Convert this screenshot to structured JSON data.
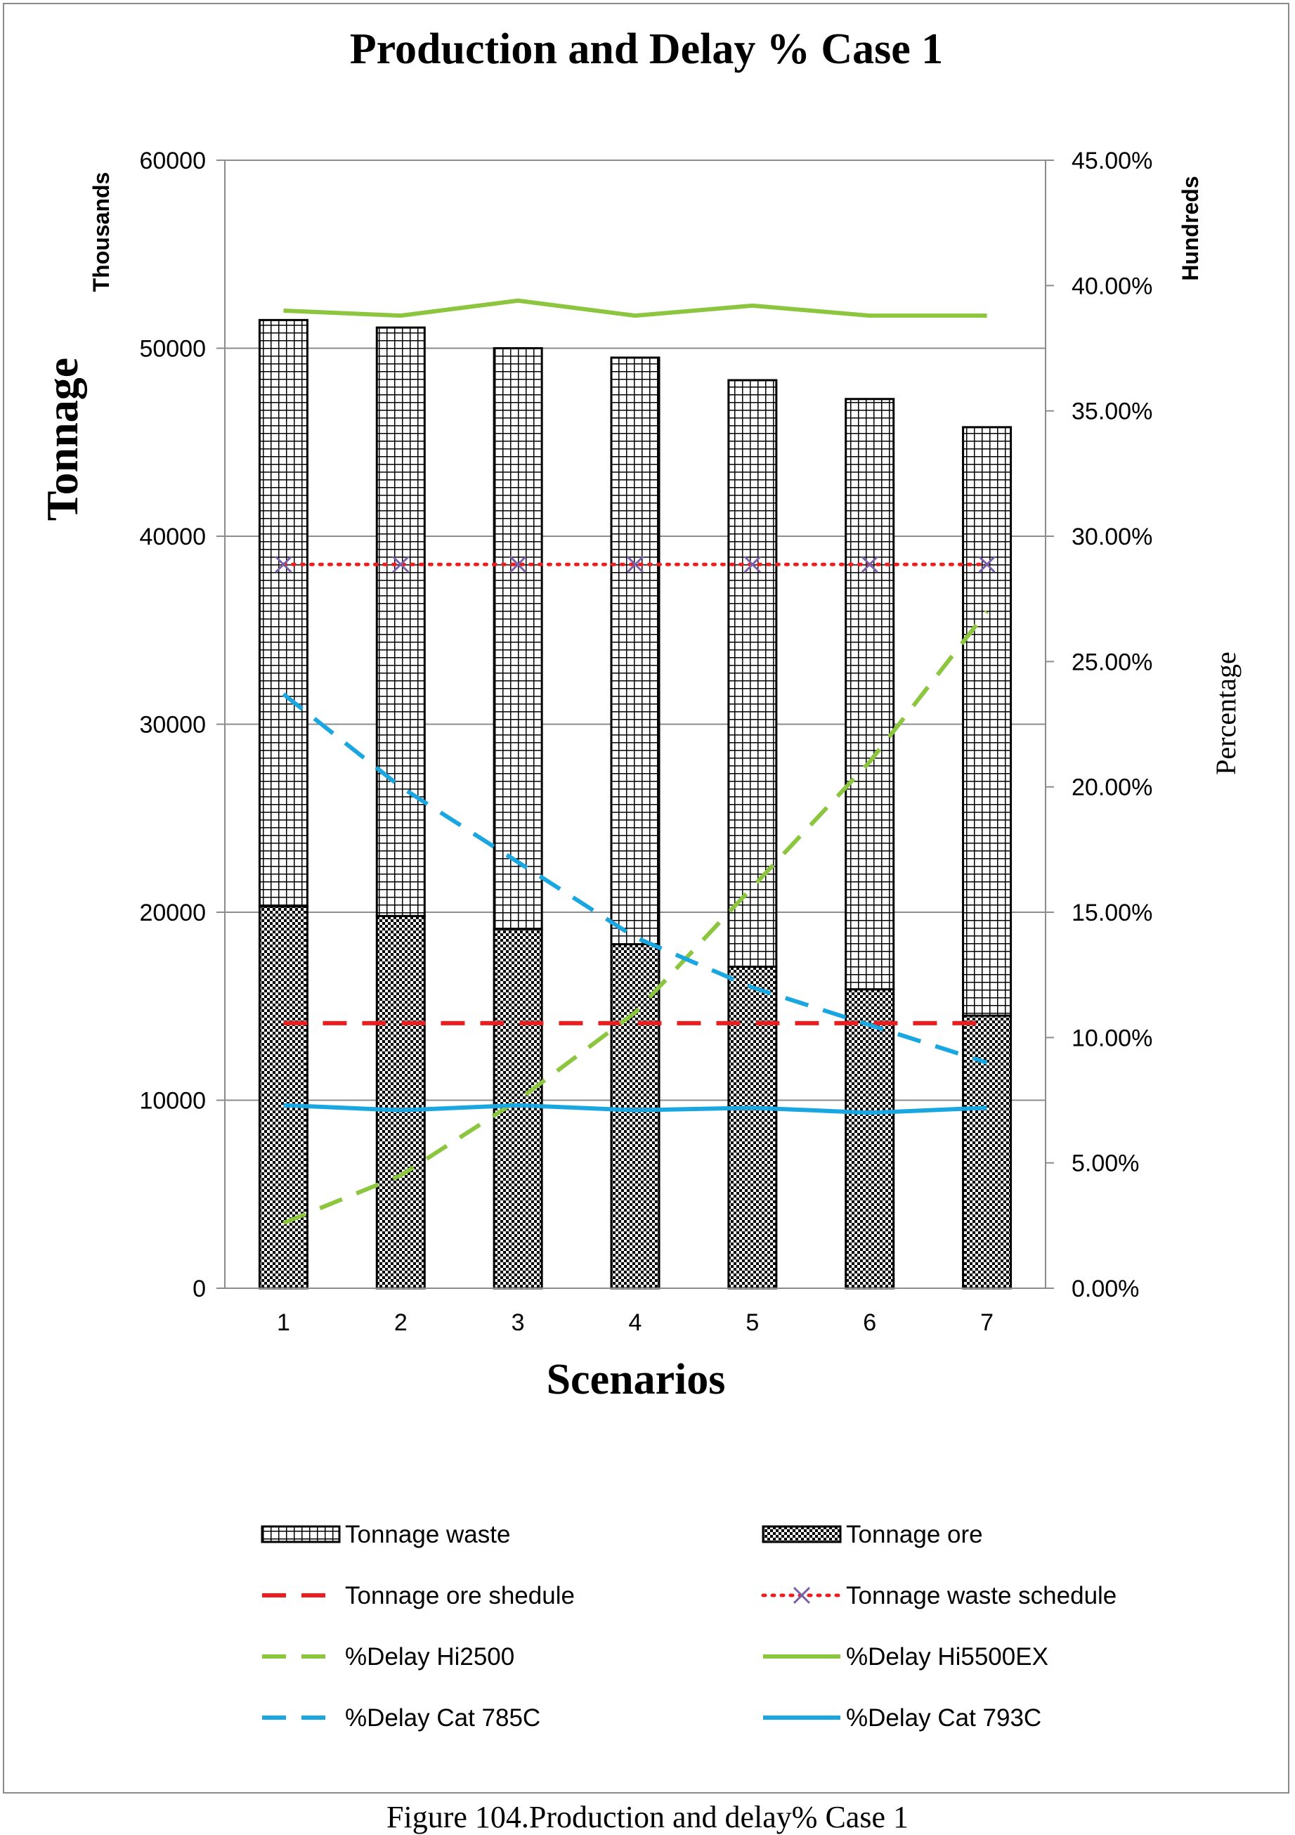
{
  "caption": "Figure 104.Production and delay% Case 1",
  "chart_data": {
    "type": "bar",
    "title": "Production and Delay % Case 1",
    "xlabel": "Scenarios",
    "ylabel": "Tonnage",
    "y_display_unit": "Thousands",
    "y2label": "Percentage",
    "y2_display_unit": "Hundreds",
    "categories": [
      "1",
      "2",
      "3",
      "4",
      "5",
      "6",
      "7"
    ],
    "ylim": [
      0,
      60000
    ],
    "yticks": [
      "0",
      "10000",
      "20000",
      "30000",
      "40000",
      "50000",
      "60000"
    ],
    "y2lim": [
      0,
      45
    ],
    "y2ticks": [
      "0.00%",
      "5.00%",
      "10.00%",
      "15.00%",
      "20.00%",
      "25.00%",
      "30.00%",
      "35.00%",
      "40.00%",
      "45.00%"
    ],
    "grid": true,
    "legend_position": "bottom",
    "bars_stacked": [
      {
        "name": "Tonnage ore",
        "pattern": "checker",
        "values": [
          20300,
          19800,
          19100,
          18300,
          17100,
          15900,
          14500
        ]
      },
      {
        "name": "Tonnage waste",
        "pattern": "grid",
        "values": [
          31200,
          31300,
          30900,
          31200,
          31200,
          31400,
          31300
        ]
      }
    ],
    "lines_primary": [
      {
        "name": "Tonnage ore shedule",
        "color": "#ee1c1c",
        "style": "dash",
        "values": [
          14100,
          14100,
          14100,
          14100,
          14100,
          14100,
          14100
        ]
      },
      {
        "name": "Tonnage waste schedule",
        "color": "#ee1c1c",
        "marker_color": "#7b5ea7",
        "style": "dot",
        "values": [
          38500,
          38500,
          38500,
          38500,
          38500,
          38500,
          38500
        ]
      }
    ],
    "lines_secondary": [
      {
        "name": "%Delay Hi2500",
        "color": "#8cc63f",
        "style": "dash",
        "values": [
          2.6,
          4.5,
          7.5,
          11.0,
          16.0,
          21.0,
          27.0
        ]
      },
      {
        "name": "%Delay Hi5500EX",
        "color": "#8cc63f",
        "style": "solid",
        "values": [
          39.0,
          38.8,
          39.4,
          38.8,
          39.2,
          38.8,
          38.8
        ]
      },
      {
        "name": "%Delay Cat 785C",
        "color": "#1aa7e1",
        "style": "dash",
        "values": [
          23.7,
          20.0,
          17.0,
          14.0,
          12.0,
          10.5,
          9.0
        ]
      },
      {
        "name": "%Delay Cat 793C",
        "color": "#1aa7e1",
        "style": "solid",
        "values": [
          7.3,
          7.1,
          7.3,
          7.1,
          7.2,
          7.0,
          7.2
        ]
      }
    ],
    "legend": [
      "Tonnage waste",
      "Tonnage ore",
      "Tonnage ore shedule",
      "Tonnage waste schedule",
      "%Delay Hi2500",
      "%Delay Hi5500EX",
      "%Delay Cat 785C",
      "%Delay Cat 793C"
    ]
  }
}
